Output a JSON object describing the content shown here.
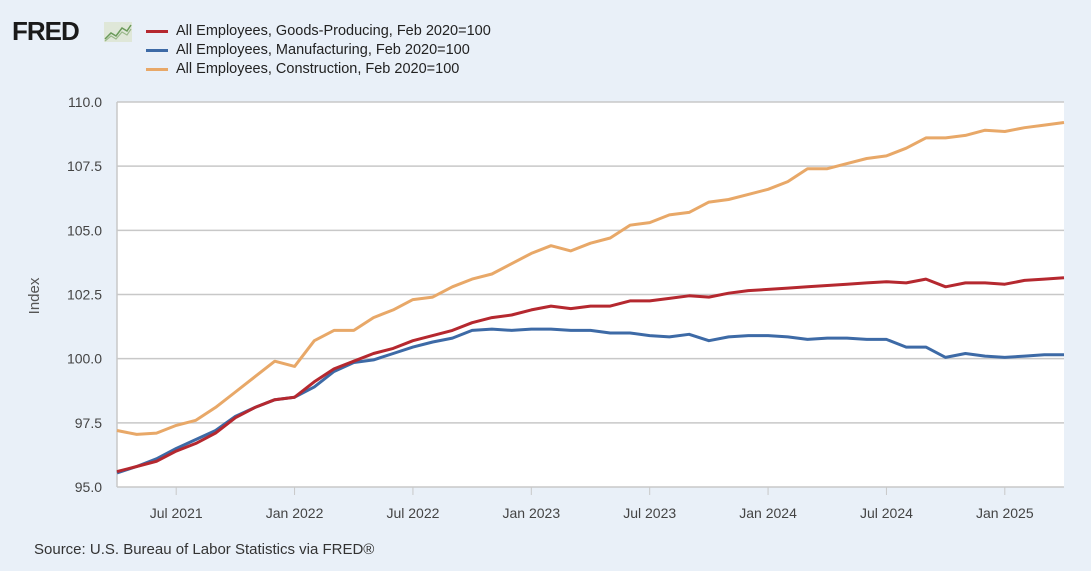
{
  "logo": "FRED",
  "source": "Source: U.S. Bureau of Labor Statistics via FRED®",
  "chart_data": {
    "type": "line",
    "title": "",
    "xlabel": "",
    "ylabel": "Index",
    "ylim": [
      95,
      110
    ],
    "yticks": [
      "95.0",
      "97.5",
      "100.0",
      "102.5",
      "105.0",
      "107.5",
      "110.0"
    ],
    "xticks": [
      "Jul 2021",
      "Jan 2022",
      "Jul 2022",
      "Jan 2023",
      "Jul 2023",
      "Jan 2024",
      "Jul 2024",
      "Jan 2025"
    ],
    "x_start": "2021-04",
    "x_end": "2025-04",
    "frequency": "monthly",
    "grid": true,
    "legend_position": "top-left",
    "series": [
      {
        "name": "All Employees, Goods-Producing, Feb 2020=100",
        "color": "#b5282f",
        "values": [
          95.6,
          95.8,
          96.0,
          96.4,
          96.7,
          97.1,
          97.7,
          98.1,
          98.4,
          98.5,
          99.1,
          99.6,
          99.9,
          100.2,
          100.4,
          100.7,
          100.9,
          101.1,
          101.4,
          101.6,
          101.7,
          101.9,
          102.05,
          101.95,
          102.05,
          102.05,
          102.25,
          102.25,
          102.35,
          102.45,
          102.4,
          102.55,
          102.65,
          102.7,
          102.75,
          102.8,
          102.85,
          102.9,
          102.95,
          103.0,
          102.95,
          103.1,
          102.8,
          102.95,
          102.95,
          102.9,
          103.05,
          103.1,
          103.15
        ]
      },
      {
        "name": "All Employees, Manufacturing, Feb 2020=100",
        "color": "#3d6aa6",
        "values": [
          95.55,
          95.8,
          96.1,
          96.5,
          96.85,
          97.2,
          97.75,
          98.1,
          98.4,
          98.5,
          98.9,
          99.5,
          99.85,
          99.95,
          100.2,
          100.45,
          100.65,
          100.8,
          101.1,
          101.15,
          101.1,
          101.15,
          101.15,
          101.1,
          101.1,
          101.0,
          101.0,
          100.9,
          100.85,
          100.95,
          100.7,
          100.85,
          100.9,
          100.9,
          100.85,
          100.75,
          100.8,
          100.8,
          100.75,
          100.75,
          100.45,
          100.45,
          100.05,
          100.2,
          100.1,
          100.05,
          100.1,
          100.15,
          100.15
        ]
      },
      {
        "name": "All Employees, Construction, Feb 2020=100",
        "color": "#e8a868",
        "values": [
          97.2,
          97.05,
          97.1,
          97.4,
          97.6,
          98.1,
          98.7,
          99.3,
          99.9,
          99.7,
          100.7,
          101.1,
          101.1,
          101.6,
          101.9,
          102.3,
          102.4,
          102.8,
          103.1,
          103.3,
          103.7,
          104.1,
          104.4,
          104.2,
          104.5,
          104.7,
          105.2,
          105.3,
          105.6,
          105.7,
          106.1,
          106.2,
          106.4,
          106.6,
          106.9,
          107.4,
          107.4,
          107.6,
          107.8,
          107.9,
          108.2,
          108.6,
          108.6,
          108.7,
          108.9,
          108.85,
          109.0,
          109.1,
          109.2
        ]
      }
    ]
  }
}
